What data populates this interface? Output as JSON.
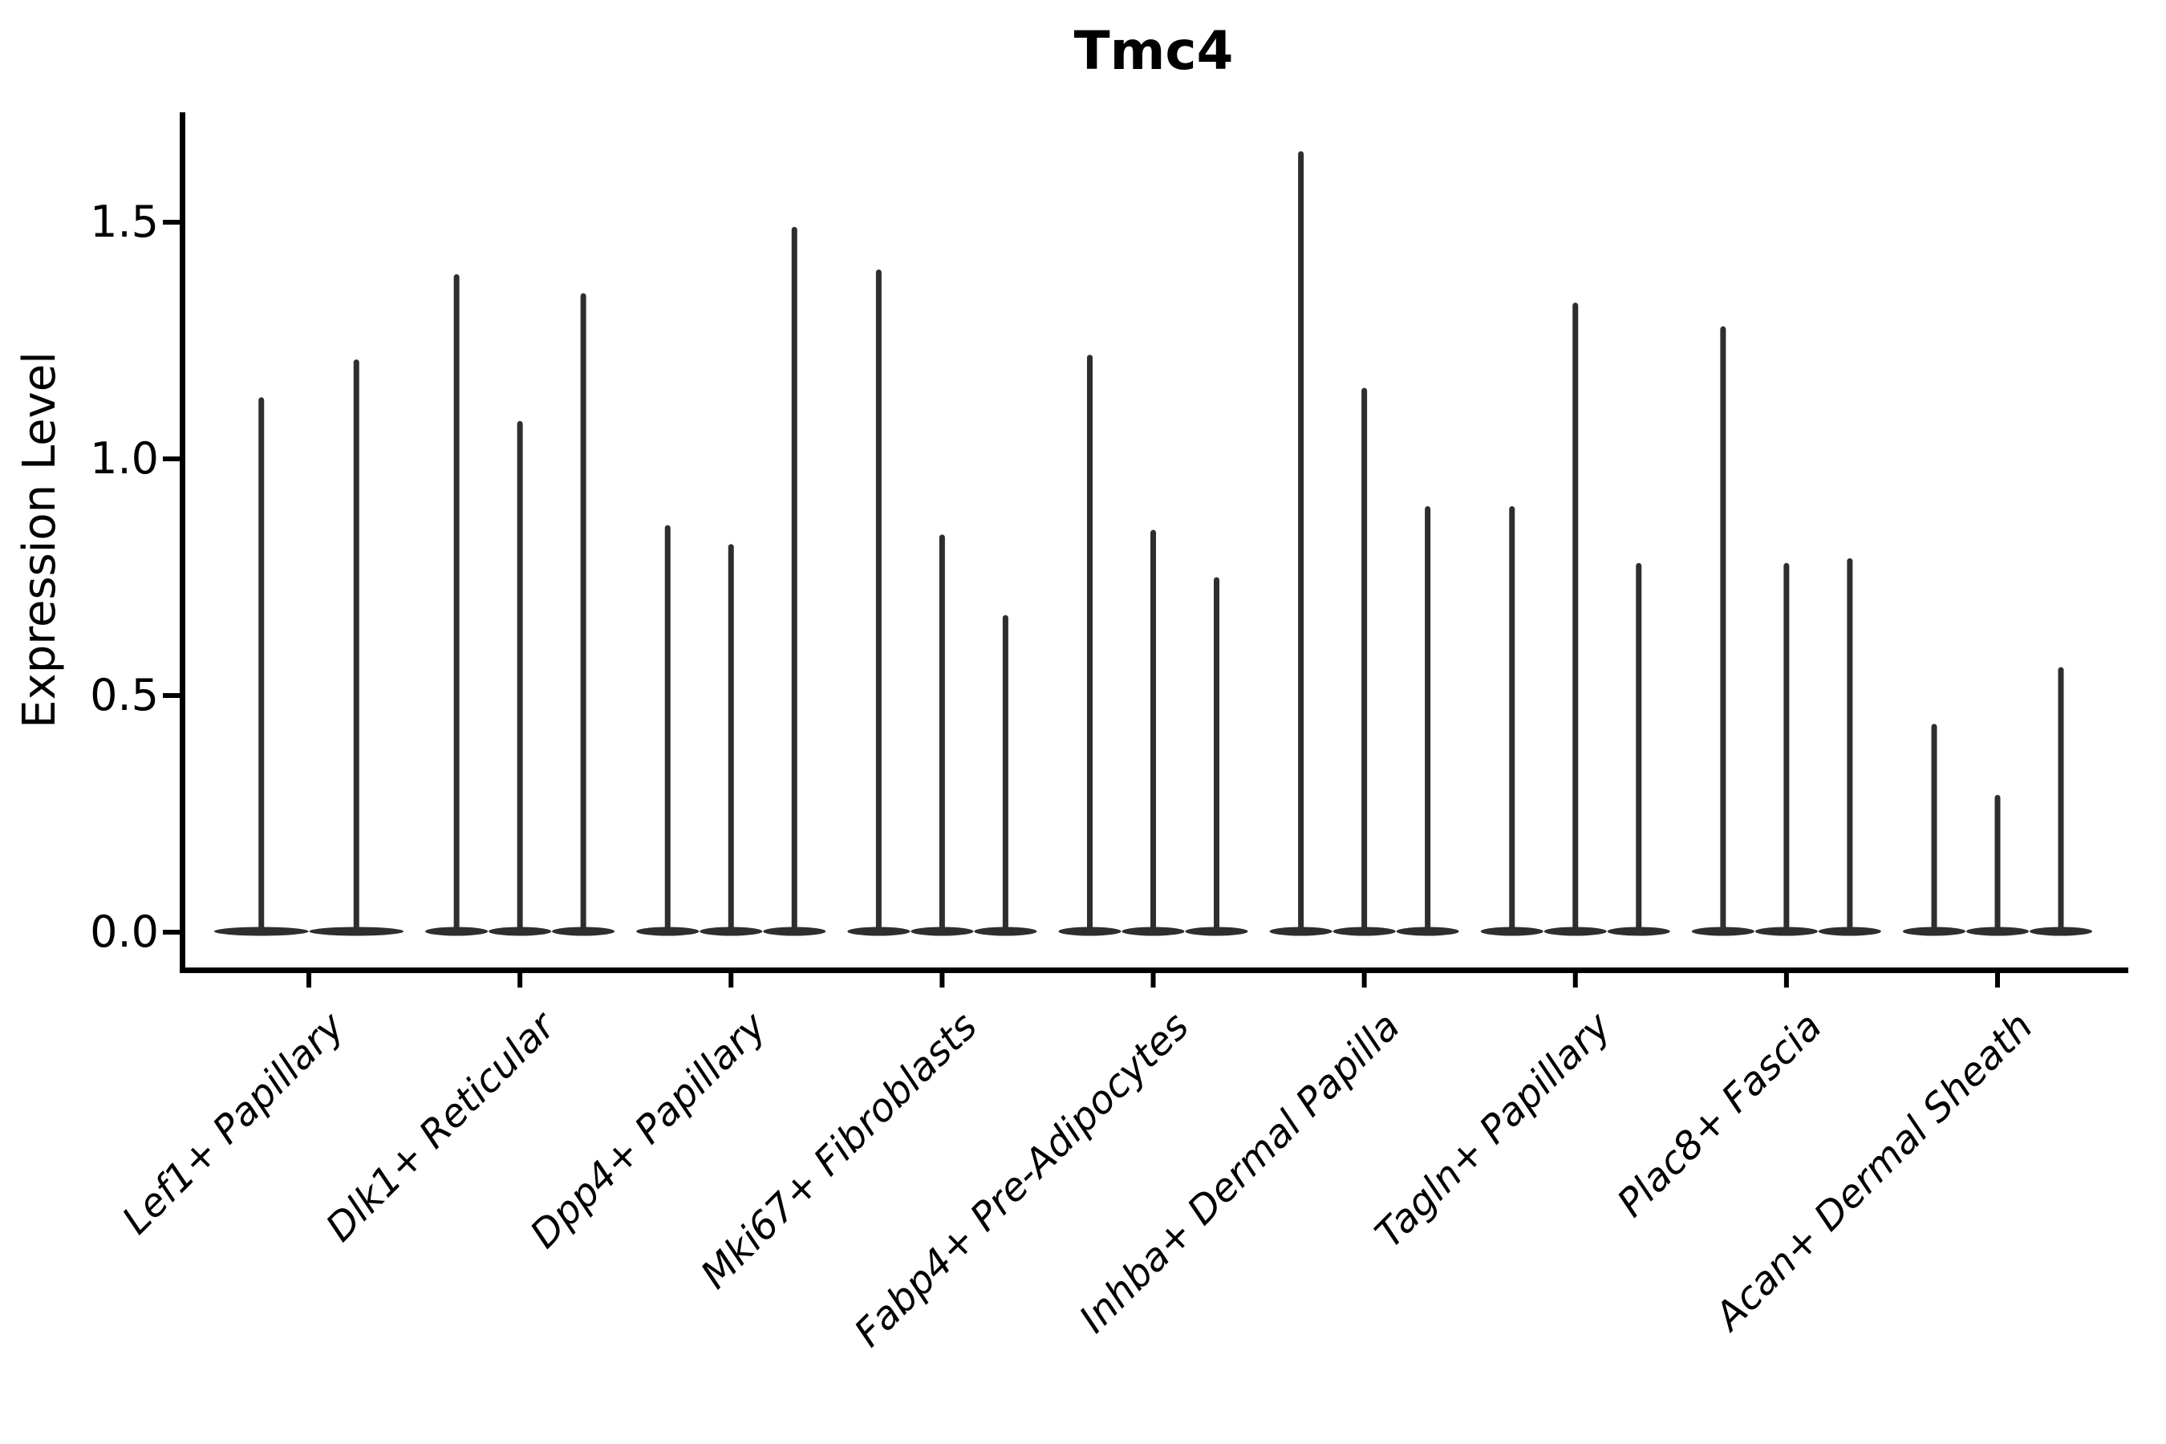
{
  "figure": {
    "title": "Tmc4",
    "y_axis_label": "Expression Level",
    "y_tick_labels": [
      "1.5",
      "1.0",
      "0.5",
      "0.0"
    ]
  },
  "chart_data": {
    "type": "violin",
    "title": "Tmc4",
    "xlabel": "",
    "ylabel": "Expression Level",
    "ylim": [
      -0.08,
      1.73
    ],
    "y_ticks": [
      0.0,
      0.5,
      1.0,
      1.5
    ],
    "grid": false,
    "legend": false,
    "orientation": "vertical",
    "description": "Single-cell expression violin plot: each cluster shows 2-3 extremely narrow violins (density mass concentrated at 0, drawn as flat pancakes on the baseline) with thin vertical spikes reaching the maximum expression value listed in spike_maxima.",
    "categories": [
      "Lef1+ Papillary",
      "Dlk1+ Reticular",
      "Dpp4+ Papillary",
      "Mki67+ Fibroblasts",
      "Fabp4+ Pre-Adipocytes",
      "Inhba+ Dermal Papilla",
      "Tagln+ Papillary",
      "Plac8+ Fascia",
      "Acan+ Dermal Sheath"
    ],
    "violins": [
      {
        "category": "Lef1+ Papillary",
        "spike_maxima": [
          1.13,
          1.21
        ]
      },
      {
        "category": "Dlk1+ Reticular",
        "spike_maxima": [
          1.39,
          1.08,
          1.35
        ]
      },
      {
        "category": "Dpp4+ Papillary",
        "spike_maxima": [
          0.86,
          0.82,
          1.49
        ]
      },
      {
        "category": "Mki67+ Fibroblasts",
        "spike_maxima": [
          1.4,
          0.84,
          0.67
        ]
      },
      {
        "category": "Fabp4+ Pre-Adipocytes",
        "spike_maxima": [
          1.22,
          0.85,
          0.75
        ]
      },
      {
        "category": "Inhba+ Dermal Papilla",
        "spike_maxima": [
          1.65,
          1.15,
          0.9
        ]
      },
      {
        "category": "Tagln+ Papillary",
        "spike_maxima": [
          0.9,
          1.33,
          0.78
        ]
      },
      {
        "category": "Plac8+ Fascia",
        "spike_maxima": [
          1.28,
          0.78,
          0.79
        ]
      },
      {
        "category": "Acan+ Dermal Sheath",
        "spike_maxima": [
          0.44,
          0.29,
          0.56
        ]
      }
    ],
    "colors": {
      "violin_fill": "#2e2e2e",
      "axis": "#000000",
      "text": "#000000",
      "background": "#ffffff"
    }
  }
}
